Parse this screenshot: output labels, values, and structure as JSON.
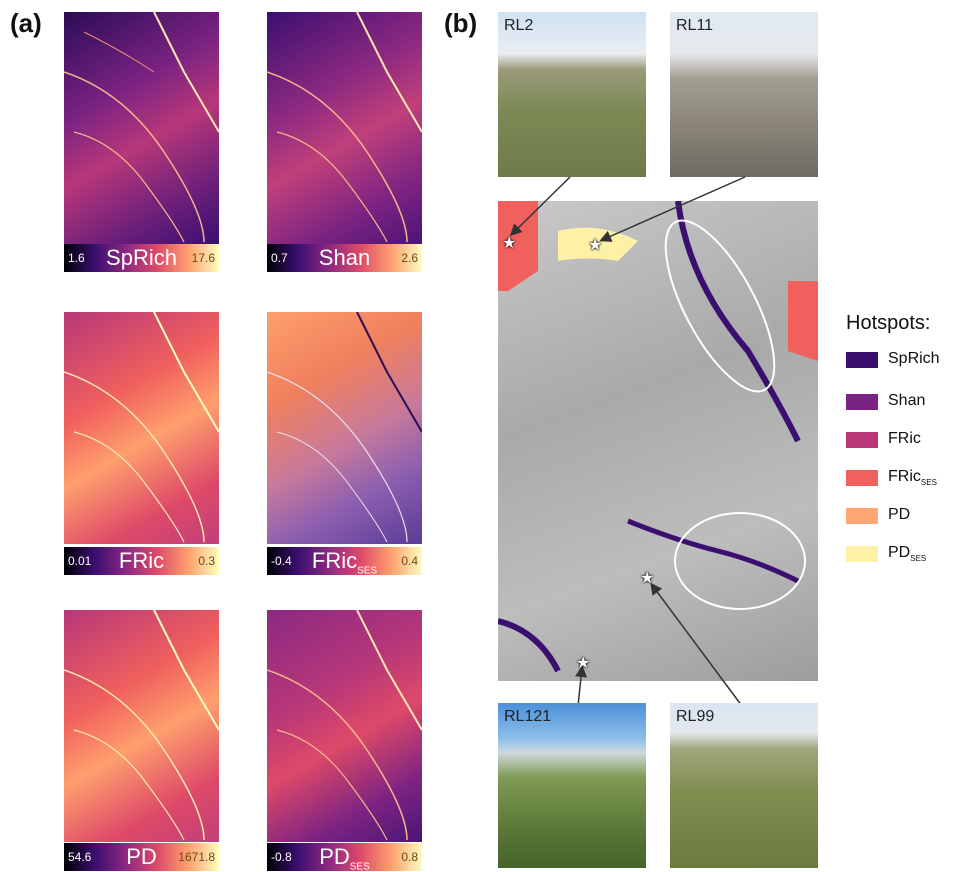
{
  "panel_a_label": "(a)",
  "panel_b_label": "(b)",
  "maps": [
    {
      "name": "SpRich",
      "sub": "",
      "min": "1.6",
      "max": "17.6",
      "style": "purple"
    },
    {
      "name": "Shan",
      "sub": "",
      "min": "0.7",
      "max": "2.6",
      "style": "purple"
    },
    {
      "name": "FRic",
      "sub": "",
      "min": "0.01",
      "max": "0.3",
      "style": "orange"
    },
    {
      "name": "FRic",
      "sub": "SES",
      "min": "-0.4",
      "max": "0.4",
      "style": "mixed"
    },
    {
      "name": "PD",
      "sub": "",
      "min": "54.6",
      "max": "1671.8",
      "style": "orange"
    },
    {
      "name": "PD",
      "sub": "SES",
      "min": "-0.8",
      "max": "0.8",
      "style": "purple"
    }
  ],
  "photos": [
    {
      "label": "RL2"
    },
    {
      "label": "RL11"
    },
    {
      "label": "RL121"
    },
    {
      "label": "RL99"
    }
  ],
  "legend": {
    "title": "Hotspots:",
    "items": [
      {
        "name": "SpRich",
        "sub": "",
        "color": "#3b0f70"
      },
      {
        "name": "Shan",
        "sub": "",
        "color": "#7b2382"
      },
      {
        "name": "FRic",
        "sub": "",
        "color": "#b73779"
      },
      {
        "name": "FRic",
        "sub": "SES",
        "color": "#f0605d"
      },
      {
        "name": "PD",
        "sub": "",
        "color": "#fea772"
      },
      {
        "name": "PD",
        "sub": "SES",
        "color": "#fcf1a7"
      }
    ]
  },
  "colors": {
    "purple_low": "#1a0a3a",
    "purple_mid": "#8a2c86",
    "orange_mid": "#f07a5a",
    "cbar_high": "#fcfdbf"
  }
}
